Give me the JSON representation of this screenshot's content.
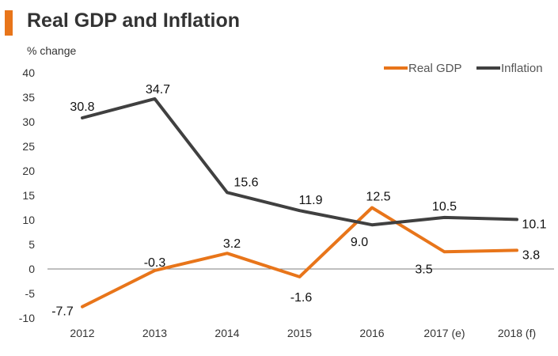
{
  "header": {
    "title": "Real GDP and Inflation"
  },
  "colors": {
    "accent": "#E8751A",
    "gdp": "#E8751A",
    "inflation": "#404040"
  },
  "chart_data": {
    "type": "line",
    "title": "Real GDP and Inflation",
    "ylabel": "% change",
    "xlabel": "",
    "categories": [
      "2012",
      "2013",
      "2014",
      "2015",
      "2016",
      "2017 (e)",
      "2018 (f)"
    ],
    "ylim": [
      -10,
      40
    ],
    "yticks": [
      "40",
      "35",
      "30",
      "25",
      "20",
      "15",
      "10",
      "5",
      "0",
      "-5",
      "-10"
    ],
    "grid": false,
    "legend_position": "top-right",
    "series": [
      {
        "name": "Real GDP",
        "color": "#E8751A",
        "values": [
          -7.7,
          -0.3,
          3.2,
          -1.6,
          12.5,
          3.5,
          3.8
        ],
        "labels": [
          "-7.7",
          "-0.3",
          "3.2",
          "-1.6",
          "12.5",
          "3.5",
          "3.8"
        ]
      },
      {
        "name": "Inflation",
        "color": "#404040",
        "values": [
          30.8,
          34.7,
          15.6,
          11.9,
          9.0,
          10.5,
          10.1
        ],
        "labels": [
          "30.8",
          "34.7",
          "15.6",
          "11.9",
          "9.0",
          "10.5",
          "10.1"
        ]
      }
    ]
  }
}
